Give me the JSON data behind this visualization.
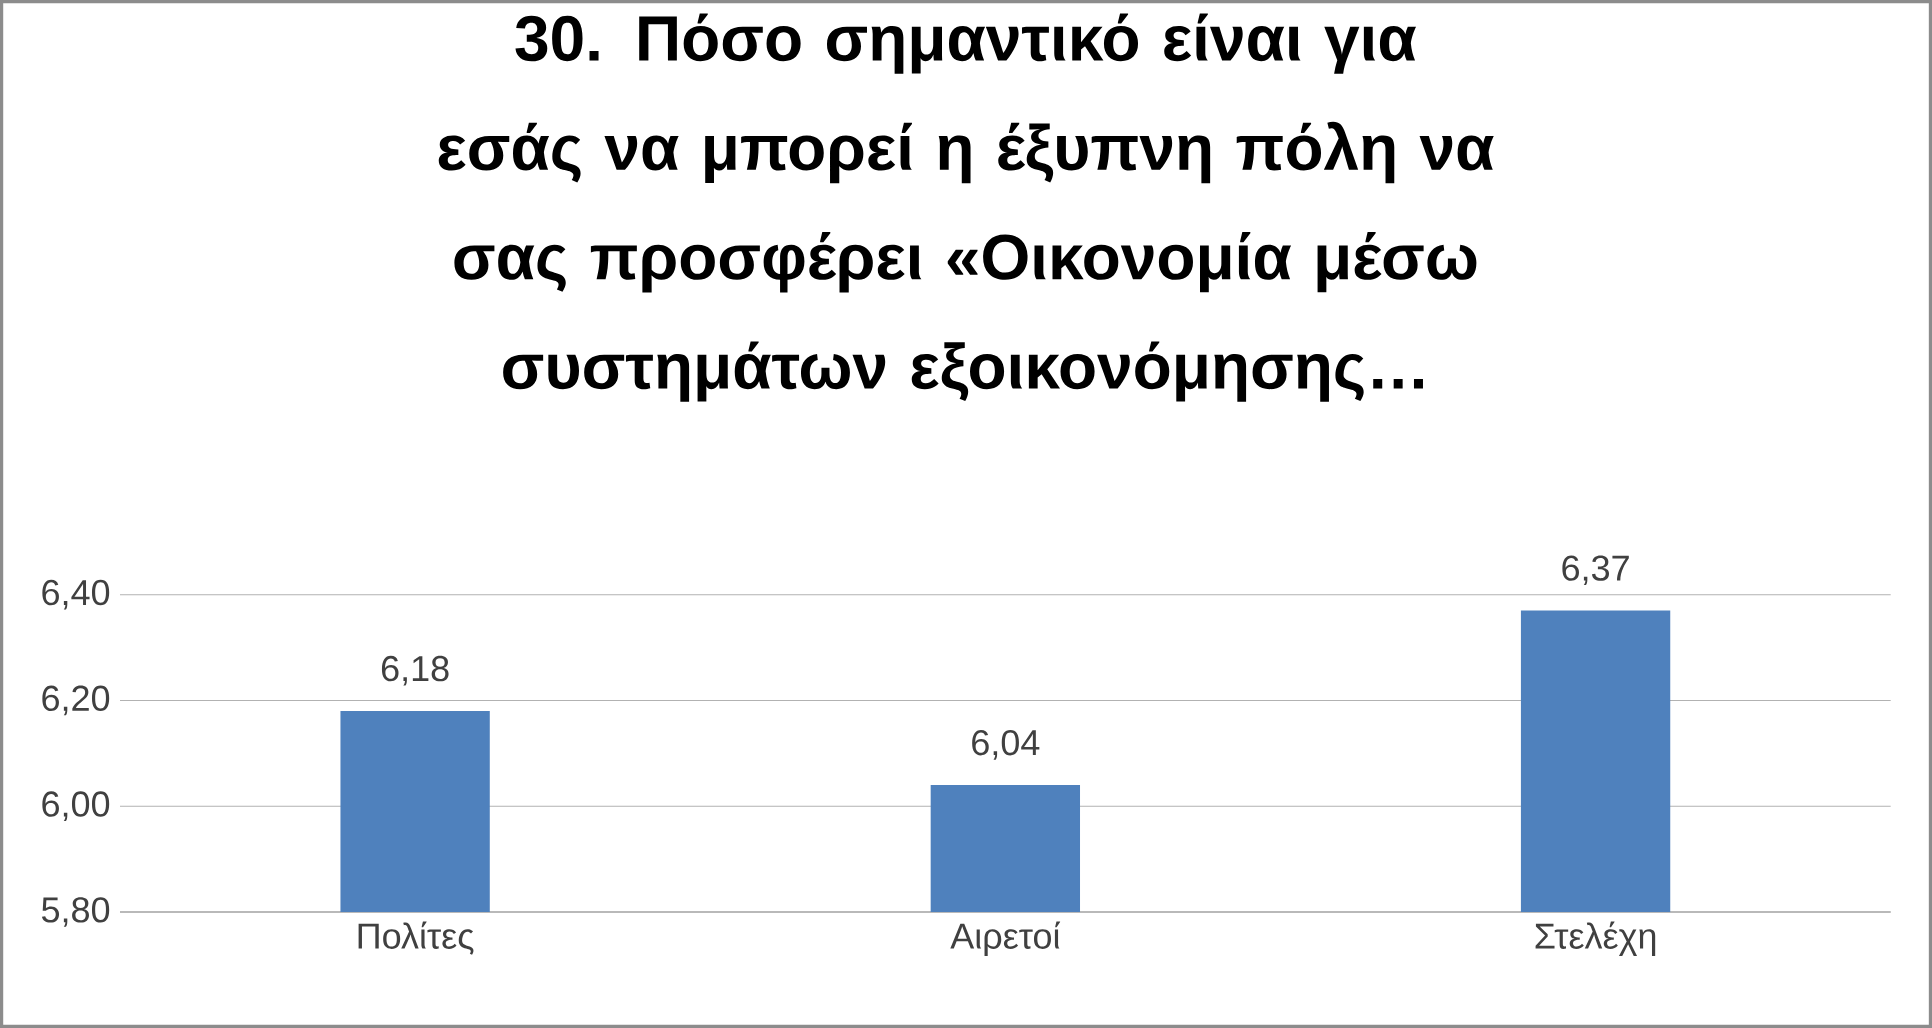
{
  "chart_data": {
    "type": "bar",
    "title": "30. Πόσο σημαντικό είναι για εσάς να μπορεί η έξυπνη πόλη να σας προσφέρει «Οικονομία μέσω συστημάτων εξοικονόμησης…",
    "categories": [
      "Πολίτες",
      "Αιρετοί",
      "Στελέχη"
    ],
    "values": [
      6.18,
      6.04,
      6.37
    ],
    "value_labels": [
      "6,18",
      "6,04",
      "6,37"
    ],
    "color": "#4f81bd",
    "ylim": [
      5.8,
      6.4
    ],
    "yticks": [
      {
        "value": 5.8,
        "label": "5,80"
      },
      {
        "value": 6.0,
        "label": "6,00"
      },
      {
        "value": 6.2,
        "label": "6,20"
      },
      {
        "value": 6.4,
        "label": "6,40"
      }
    ],
    "grid": "y"
  }
}
